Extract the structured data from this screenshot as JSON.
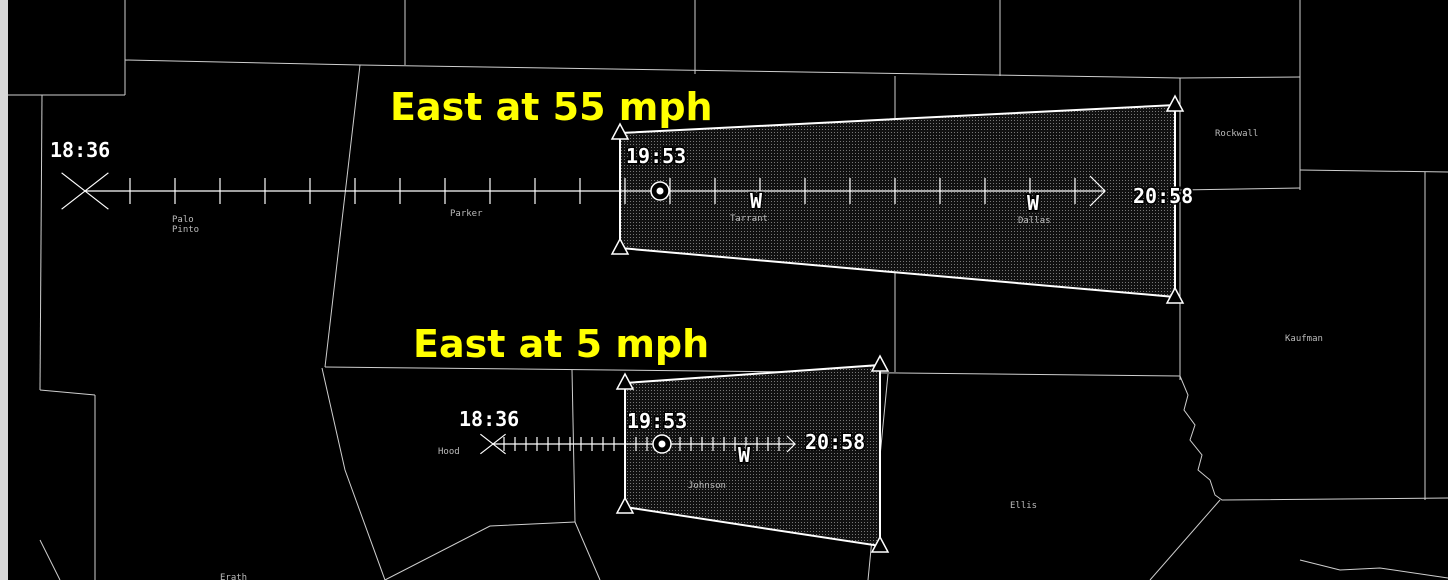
{
  "counties": [
    {
      "lines": [
        "Palo",
        "Pinto"
      ]
    },
    {
      "lines": [
        "Parker"
      ]
    },
    {
      "lines": [
        "Tarrant"
      ]
    },
    {
      "lines": [
        "Dallas"
      ]
    },
    {
      "lines": [
        "Rockwall"
      ]
    },
    {
      "lines": [
        "Kaufman"
      ]
    },
    {
      "lines": [
        "Hood"
      ]
    },
    {
      "lines": [
        "Johnson"
      ]
    },
    {
      "lines": [
        "Ellis"
      ]
    },
    {
      "lines": [
        "Erath"
      ]
    }
  ],
  "tracks": [
    {
      "label": "East at 55 mph",
      "start_time": "18:36",
      "current_time": "19:53",
      "end_time": "20:58",
      "markers": [
        "W",
        "W"
      ]
    },
    {
      "label": "East at 5 mph",
      "start_time": "18:36",
      "current_time": "19:53",
      "end_time": "20:58",
      "markers": [
        "W"
      ]
    }
  ]
}
